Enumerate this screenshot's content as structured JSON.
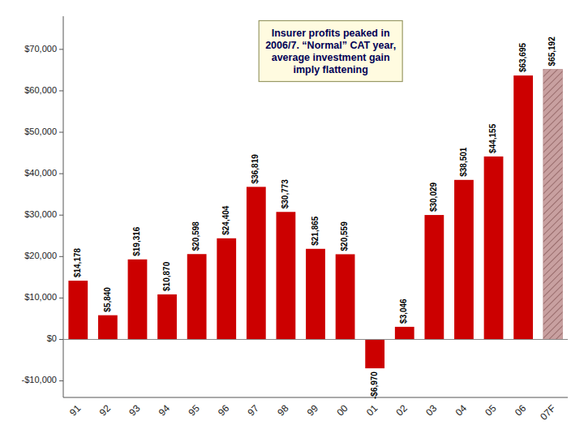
{
  "chart_data": {
    "type": "bar",
    "categories": [
      "91",
      "92",
      "93",
      "94",
      "95",
      "96",
      "97",
      "98",
      "99",
      "00",
      "01",
      "02",
      "03",
      "04",
      "05",
      "06",
      "07F"
    ],
    "values": [
      14178,
      5840,
      19316,
      10870,
      20598,
      24404,
      36819,
      30773,
      21865,
      20559,
      -6970,
      3046,
      30029,
      38501,
      44155,
      63695,
      65192
    ],
    "value_labels": [
      "$14,178",
      "$5,840",
      "$19,316",
      "$10,870",
      "$20,598",
      "$24,404",
      "$36,819",
      "$30,773",
      "$21,865",
      "$20,559",
      "-$6,970",
      "$3,046",
      "$30,029",
      "$38,501",
      "$44,155",
      "$63,695",
      "$65,192"
    ],
    "data_labels": true,
    "colors": [
      "#cc0000",
      "#cc0000",
      "#cc0000",
      "#cc0000",
      "#cc0000",
      "#cc0000",
      "#cc0000",
      "#cc0000",
      "#cc0000",
      "#cc0000",
      "#cc0000",
      "#cc0000",
      "#cc0000",
      "#cc0000",
      "#cc0000",
      "#cc0000",
      "#c8a0a0"
    ],
    "ylim": [
      -14000,
      78000
    ],
    "yticks": [
      {
        "value": -10000,
        "label": "-$10,000"
      },
      {
        "value": 0,
        "label": "$0"
      },
      {
        "value": 10000,
        "label": "$10,000"
      },
      {
        "value": 20000,
        "label": "$20,000"
      },
      {
        "value": 30000,
        "label": "$30,000"
      },
      {
        "value": 40000,
        "label": "$40,000"
      },
      {
        "value": 50000,
        "label": "$50,000"
      },
      {
        "value": 60000,
        "label": "$60,000"
      },
      {
        "value": 70000,
        "label": "$70,000"
      }
    ],
    "grid": false,
    "annotations": [
      "Insurer profits peaked in\n2006/7.  “Normal” CAT year,\naverage investment gain\nimply flattening"
    ]
  }
}
